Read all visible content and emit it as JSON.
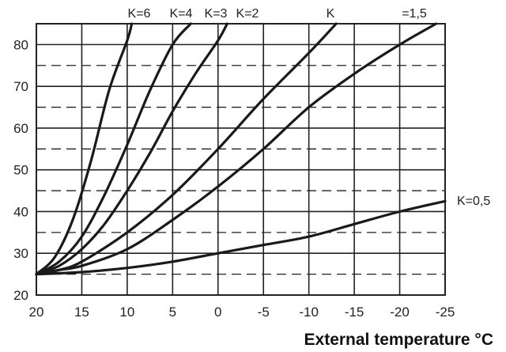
{
  "chart_data": {
    "type": "line",
    "title": "",
    "xlabel": "External temperature °C",
    "ylabel": "",
    "xlim": [
      20,
      -25
    ],
    "ylim": [
      20,
      85
    ],
    "x_ticks": [
      20,
      15,
      10,
      5,
      0,
      -5,
      -10,
      -15,
      -20,
      -25
    ],
    "y_ticks": [
      20,
      30,
      40,
      50,
      60,
      70,
      80
    ],
    "grid": true,
    "curve_labels": [
      "K=6",
      "K=4",
      "K=3",
      "K=2",
      "K",
      "=1,5",
      "K=0,5"
    ],
    "series": [
      {
        "name": "K=6",
        "x": [
          20,
          18,
          16,
          14,
          12,
          10,
          9.5
        ],
        "y": [
          25,
          29,
          38,
          52,
          69,
          81,
          85
        ]
      },
      {
        "name": "K=4",
        "x": [
          20,
          17.5,
          15,
          12.5,
          10,
          7.5,
          5,
          3
        ],
        "y": [
          25,
          28,
          34,
          44,
          56,
          69,
          80,
          85
        ]
      },
      {
        "name": "K=3",
        "x": [
          20,
          17.5,
          15,
          12.5,
          10,
          7.5,
          5,
          2.5,
          0,
          -1
        ],
        "y": [
          25,
          27,
          31,
          37,
          45,
          54,
          64,
          73,
          81,
          85
        ]
      },
      {
        "name": "K=2",
        "x": [
          20,
          17.5,
          15,
          10,
          5,
          0,
          -5,
          -10,
          -13
        ],
        "y": [
          25,
          26,
          28,
          35,
          44,
          55,
          67,
          78,
          85
        ]
      },
      {
        "name": "=1,5",
        "x": [
          20,
          17.5,
          15,
          10,
          5,
          0,
          -5,
          -10,
          -15,
          -20,
          -24
        ],
        "y": [
          25,
          26,
          27,
          31,
          38,
          46,
          55,
          65,
          73,
          80,
          85
        ]
      },
      {
        "name": "K=0,5",
        "x": [
          20,
          15,
          10,
          5,
          0,
          -5,
          -10,
          -15,
          -20,
          -25
        ],
        "y": [
          25,
          25.5,
          26.5,
          28,
          30,
          32,
          34,
          37,
          40,
          42.5
        ]
      }
    ]
  }
}
